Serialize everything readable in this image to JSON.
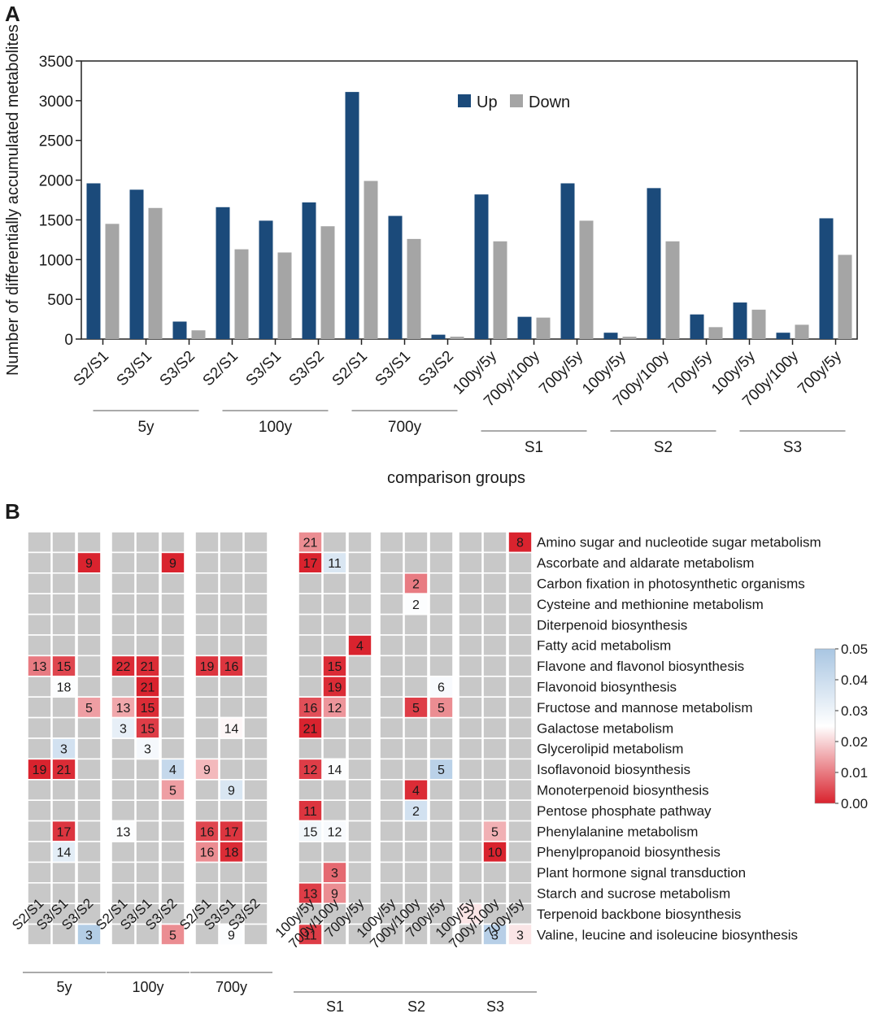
{
  "chart_data": [
    {
      "panel": "A",
      "type": "bar",
      "ylabel": "Number of differentially accumulated metabolites",
      "xlabel": "comparison groups",
      "ylim": [
        0,
        3500
      ],
      "yticks": [
        0,
        500,
        1000,
        1500,
        2000,
        2500,
        3000,
        3500
      ],
      "legend_position": "top-center",
      "grid": false,
      "categories": [
        "S2/S1",
        "S3/S1",
        "S3/S2",
        "S2/S1",
        "S3/S1",
        "S3/S2",
        "S2/S1",
        "S3/S1",
        "S3/S2",
        "100y/5y",
        "700y/100y",
        "700y/5y",
        "100y/5y",
        "700y/100y",
        "700y/5y",
        "100y/5y",
        "700y/100y",
        "700y/5y"
      ],
      "groups": [
        {
          "label": "5y",
          "start": 0,
          "end": 2
        },
        {
          "label": "100y",
          "start": 3,
          "end": 5
        },
        {
          "label": "700y",
          "start": 6,
          "end": 8
        },
        {
          "label": "S1",
          "start": 9,
          "end": 11
        },
        {
          "label": "S2",
          "start": 12,
          "end": 14
        },
        {
          "label": "S3",
          "start": 15,
          "end": 17
        }
      ],
      "series": [
        {
          "name": "Up",
          "color": "#1b4a7a",
          "values": [
            1960,
            1880,
            220,
            1660,
            1490,
            1720,
            3110,
            1550,
            55,
            1820,
            280,
            1960,
            80,
            1900,
            310,
            460,
            80,
            1520
          ]
        },
        {
          "name": "Down",
          "color": "#a5a5a5",
          "values": [
            1450,
            1650,
            110,
            1130,
            1090,
            1420,
            1990,
            1260,
            30,
            1230,
            270,
            1490,
            30,
            1230,
            150,
            370,
            180,
            1060
          ]
        }
      ]
    },
    {
      "panel": "B",
      "type": "heatmap",
      "colorbar": {
        "min": 0.0,
        "max": 0.05,
        "ticks": [
          "0.00",
          "0.01",
          "0.02",
          "0.03",
          "0.04",
          "0.05"
        ],
        "colors": [
          "#d9232e",
          "#ffffff",
          "#a9c6e2"
        ]
      },
      "empty_color": "#c8c8c8",
      "columns": [
        "S2/S1",
        "S3/S1",
        "S3/S2",
        "S2/S1",
        "S3/S1",
        "S3/S2",
        "S2/S1",
        "S3/S1",
        "S3/S2",
        "100y/5y",
        "700y/100y",
        "700y/5y",
        "100y/5y",
        "700y/100y",
        "700y/5y",
        "100y/5y",
        "700y/100y",
        "700y/5y"
      ],
      "groups": [
        {
          "label": "5y",
          "start": 0,
          "end": 2
        },
        {
          "label": "100y",
          "start": 3,
          "end": 5
        },
        {
          "label": "700y",
          "start": 6,
          "end": 8
        },
        {
          "label": "S1",
          "start": 9,
          "end": 11
        },
        {
          "label": "S2",
          "start": 12,
          "end": 14
        },
        {
          "label": "S3",
          "start": 15,
          "end": 17
        }
      ],
      "rows": [
        "Amino sugar and nucleotide sugar metabolism",
        "Ascorbate and aldarate metabolism",
        "Carbon fixation in photosynthetic organisms",
        "Cysteine and methionine metabolism",
        "Diterpenoid biosynthesis",
        "Fatty acid metabolism",
        "Flavone and flavonol biosynthesis",
        "Flavonoid biosynthesis",
        "Fructose and mannose metabolism",
        "Galactose metabolism",
        "Glycerolipid metabolism",
        "Isoflavonoid biosynthesis",
        "Monoterpenoid biosynthesis",
        "Pentose phosphate pathway",
        "Phenylalanine metabolism",
        "Phenylpropanoid biosynthesis",
        "Plant hormone signal transduction",
        "Starch and sucrose metabolism",
        "Terpenoid backbone biosynthesis",
        "Valine, leucine and isoleucine biosynthesis"
      ],
      "cells": [
        {
          "row": 0,
          "col": 9,
          "count": 21,
          "p": 0.012
        },
        {
          "row": 0,
          "col": 17,
          "count": 8,
          "p": 0.0
        },
        {
          "row": 1,
          "col": 2,
          "count": 9,
          "p": 0.0
        },
        {
          "row": 1,
          "col": 5,
          "count": 9,
          "p": 0.0
        },
        {
          "row": 1,
          "col": 9,
          "count": 17,
          "p": 0.0
        },
        {
          "row": 1,
          "col": 10,
          "count": 11,
          "p": 0.036
        },
        {
          "row": 2,
          "col": 13,
          "count": 2,
          "p": 0.01
        },
        {
          "row": 3,
          "col": 13,
          "count": 2,
          "p": 0.026
        },
        {
          "row": 5,
          "col": 11,
          "count": 4,
          "p": 0.0
        },
        {
          "row": 6,
          "col": 0,
          "count": 13,
          "p": 0.01
        },
        {
          "row": 6,
          "col": 1,
          "count": 15,
          "p": 0.004
        },
        {
          "row": 6,
          "col": 3,
          "count": 22,
          "p": 0.001
        },
        {
          "row": 6,
          "col": 4,
          "count": 21,
          "p": 0.001
        },
        {
          "row": 6,
          "col": 6,
          "count": 19,
          "p": 0.002
        },
        {
          "row": 6,
          "col": 7,
          "count": 16,
          "p": 0.002
        },
        {
          "row": 6,
          "col": 10,
          "count": 15,
          "p": 0.001
        },
        {
          "row": 7,
          "col": 1,
          "count": 18,
          "p": 0.026
        },
        {
          "row": 7,
          "col": 4,
          "count": 21,
          "p": 0.0
        },
        {
          "row": 7,
          "col": 10,
          "count": 19,
          "p": 0.001
        },
        {
          "row": 7,
          "col": 14,
          "count": 6,
          "p": 0.027
        },
        {
          "row": 8,
          "col": 2,
          "count": 5,
          "p": 0.014
        },
        {
          "row": 8,
          "col": 3,
          "count": 13,
          "p": 0.015
        },
        {
          "row": 8,
          "col": 4,
          "count": 15,
          "p": 0.001
        },
        {
          "row": 8,
          "col": 9,
          "count": 16,
          "p": 0.005
        },
        {
          "row": 8,
          "col": 10,
          "count": 12,
          "p": 0.013
        },
        {
          "row": 8,
          "col": 13,
          "count": 5,
          "p": 0.003
        },
        {
          "row": 8,
          "col": 14,
          "count": 5,
          "p": 0.012
        },
        {
          "row": 9,
          "col": 3,
          "count": 3,
          "p": 0.032
        },
        {
          "row": 9,
          "col": 4,
          "count": 15,
          "p": 0.003
        },
        {
          "row": 9,
          "col": 7,
          "count": 14,
          "p": 0.024
        },
        {
          "row": 9,
          "col": 9,
          "count": 21,
          "p": 0.0
        },
        {
          "row": 10,
          "col": 1,
          "count": 3,
          "p": 0.038
        },
        {
          "row": 10,
          "col": 4,
          "count": 3,
          "p": 0.028
        },
        {
          "row": 11,
          "col": 0,
          "count": 19,
          "p": 0.0
        },
        {
          "row": 11,
          "col": 1,
          "count": 21,
          "p": 0.001
        },
        {
          "row": 11,
          "col": 5,
          "count": 4,
          "p": 0.042
        },
        {
          "row": 11,
          "col": 6,
          "count": 9,
          "p": 0.017
        },
        {
          "row": 11,
          "col": 9,
          "count": 12,
          "p": 0.003
        },
        {
          "row": 11,
          "col": 10,
          "count": 14,
          "p": 0.026
        },
        {
          "row": 11,
          "col": 14,
          "count": 5,
          "p": 0.045
        },
        {
          "row": 12,
          "col": 5,
          "count": 5,
          "p": 0.014
        },
        {
          "row": 12,
          "col": 7,
          "count": 9,
          "p": 0.036
        },
        {
          "row": 12,
          "col": 13,
          "count": 4,
          "p": 0.001
        },
        {
          "row": 13,
          "col": 9,
          "count": 11,
          "p": 0.002
        },
        {
          "row": 13,
          "col": 13,
          "count": 2,
          "p": 0.038
        },
        {
          "row": 14,
          "col": 1,
          "count": 17,
          "p": 0.002
        },
        {
          "row": 14,
          "col": 3,
          "count": 13,
          "p": 0.026
        },
        {
          "row": 14,
          "col": 6,
          "count": 16,
          "p": 0.004
        },
        {
          "row": 14,
          "col": 7,
          "count": 17,
          "p": 0.002
        },
        {
          "row": 14,
          "col": 9,
          "count": 15,
          "p": 0.029
        },
        {
          "row": 14,
          "col": 10,
          "count": 12,
          "p": 0.027
        },
        {
          "row": 14,
          "col": 16,
          "count": 5,
          "p": 0.016
        },
        {
          "row": 15,
          "col": 1,
          "count": 14,
          "p": 0.033
        },
        {
          "row": 15,
          "col": 6,
          "count": 16,
          "p": 0.012
        },
        {
          "row": 15,
          "col": 7,
          "count": 18,
          "p": 0.001
        },
        {
          "row": 15,
          "col": 16,
          "count": 10,
          "p": 0.0
        },
        {
          "row": 16,
          "col": 10,
          "count": 3,
          "p": 0.008
        },
        {
          "row": 17,
          "col": 9,
          "count": 13,
          "p": 0.003
        },
        {
          "row": 17,
          "col": 10,
          "count": 9,
          "p": 0.012
        },
        {
          "row": 18,
          "col": 15,
          "count": 2,
          "p": 0.022
        },
        {
          "row": 19,
          "col": 2,
          "count": 3,
          "p": 0.047
        },
        {
          "row": 19,
          "col": 5,
          "count": 5,
          "p": 0.012
        },
        {
          "row": 19,
          "col": 7,
          "count": 9,
          "p": 0.026
        },
        {
          "row": 19,
          "col": 9,
          "count": 11,
          "p": 0.003
        },
        {
          "row": 19,
          "col": 16,
          "count": 3,
          "p": 0.046
        },
        {
          "row": 19,
          "col": 17,
          "count": 3,
          "p": 0.022
        }
      ]
    }
  ]
}
